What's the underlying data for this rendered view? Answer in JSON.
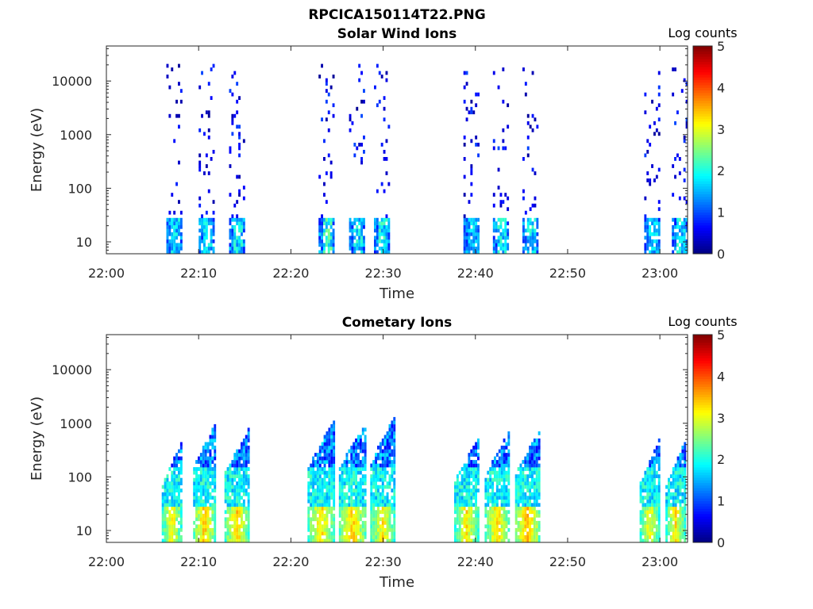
{
  "figure_title": "RPCICA150114T22.PNG",
  "chart_data": [
    {
      "type": "heatmap",
      "title": "Solar Wind Ions",
      "xlabel": "Time",
      "ylabel": "Energy (eV)",
      "y_scale": "log",
      "ylim": [
        6,
        45000
      ],
      "xlim_minutes": [
        0,
        63
      ],
      "x_ticks": [
        {
          "v": 0,
          "label": "22:00"
        },
        {
          "v": 10,
          "label": "22:10"
        },
        {
          "v": 20,
          "label": "22:20"
        },
        {
          "v": 30,
          "label": "22:30"
        },
        {
          "v": 40,
          "label": "22:40"
        },
        {
          "v": 50,
          "label": "22:50"
        },
        {
          "v": 60,
          "label": "23:00"
        }
      ],
      "y_ticks": [
        {
          "v": 10,
          "label": "10"
        },
        {
          "v": 100,
          "label": "100"
        },
        {
          "v": 1000,
          "label": "1000"
        },
        {
          "v": 10000,
          "label": "10000"
        }
      ],
      "colorbar": {
        "title": "Log counts",
        "min": 0,
        "max": 5,
        "ticks": [
          "0",
          "1",
          "2",
          "3",
          "4",
          "5"
        ],
        "colormap": "jet"
      },
      "bursts": [
        {
          "t": 6.5,
          "w": 1.8,
          "top": 30,
          "peak": 1.9,
          "hi": 8
        },
        {
          "t": 10.0,
          "w": 1.8,
          "top": 30,
          "peak": 1.9,
          "hi": 8
        },
        {
          "t": 13.3,
          "w": 1.8,
          "top": 30,
          "peak": 2.0,
          "hi": 9
        },
        {
          "t": 23.0,
          "w": 1.8,
          "top": 30,
          "peak": 2.3,
          "hi": 10
        },
        {
          "t": 26.3,
          "w": 1.8,
          "top": 30,
          "peak": 2.0,
          "hi": 8
        },
        {
          "t": 29.0,
          "w": 1.8,
          "top": 30,
          "peak": 2.1,
          "hi": 10
        },
        {
          "t": 38.7,
          "w": 1.8,
          "top": 30,
          "peak": 1.8,
          "hi": 8
        },
        {
          "t": 41.9,
          "w": 1.8,
          "top": 30,
          "peak": 2.0,
          "hi": 9
        },
        {
          "t": 45.1,
          "w": 1.8,
          "top": 30,
          "peak": 2.0,
          "hi": 9
        },
        {
          "t": 58.3,
          "w": 1.8,
          "top": 30,
          "peak": 1.8,
          "hi": 8
        },
        {
          "t": 61.3,
          "w": 1.8,
          "top": 30,
          "peak": 2.0,
          "hi": 8
        }
      ]
    },
    {
      "type": "heatmap",
      "title": "Cometary Ions",
      "xlabel": "Time",
      "ylabel": "Energy (eV)",
      "y_scale": "log",
      "ylim": [
        6,
        45000
      ],
      "xlim_minutes": [
        0,
        63
      ],
      "x_ticks": [
        {
          "v": 0,
          "label": "22:00"
        },
        {
          "v": 10,
          "label": "22:10"
        },
        {
          "v": 20,
          "label": "22:20"
        },
        {
          "v": 30,
          "label": "22:30"
        },
        {
          "v": 40,
          "label": "22:40"
        },
        {
          "v": 50,
          "label": "22:50"
        },
        {
          "v": 60,
          "label": "23:00"
        }
      ],
      "y_ticks": [
        {
          "v": 10,
          "label": "10"
        },
        {
          "v": 100,
          "label": "100"
        },
        {
          "v": 1000,
          "label": "1000"
        },
        {
          "v": 10000,
          "label": "10000"
        }
      ],
      "colorbar": {
        "title": "Log counts",
        "min": 0,
        "max": 5,
        "ticks": [
          "0",
          "1",
          "2",
          "3",
          "4",
          "5"
        ],
        "colormap": "jet"
      },
      "bursts": [
        {
          "t": 6.0,
          "w": 2.3,
          "top": 450,
          "peak": 3.2,
          "hi": 0
        },
        {
          "t": 9.4,
          "w": 2.5,
          "top": 1000,
          "peak": 3.4,
          "hi": 0
        },
        {
          "t": 12.8,
          "w": 2.8,
          "top": 800,
          "peak": 3.3,
          "hi": 0
        },
        {
          "t": 21.8,
          "w": 3.0,
          "top": 1100,
          "peak": 3.3,
          "hi": 0
        },
        {
          "t": 25.2,
          "w": 3.0,
          "top": 1000,
          "peak": 3.4,
          "hi": 0
        },
        {
          "t": 28.6,
          "w": 2.8,
          "top": 1300,
          "peak": 3.2,
          "hi": 0
        },
        {
          "t": 37.7,
          "w": 2.8,
          "top": 550,
          "peak": 3.2,
          "hi": 0
        },
        {
          "t": 41.0,
          "w": 2.8,
          "top": 700,
          "peak": 3.3,
          "hi": 0
        },
        {
          "t": 44.3,
          "w": 2.8,
          "top": 750,
          "peak": 3.5,
          "hi": 0
        },
        {
          "t": 57.8,
          "w": 2.3,
          "top": 500,
          "peak": 3.1,
          "hi": 0
        },
        {
          "t": 60.6,
          "w": 2.3,
          "top": 450,
          "peak": 3.2,
          "hi": 0
        }
      ]
    }
  ]
}
